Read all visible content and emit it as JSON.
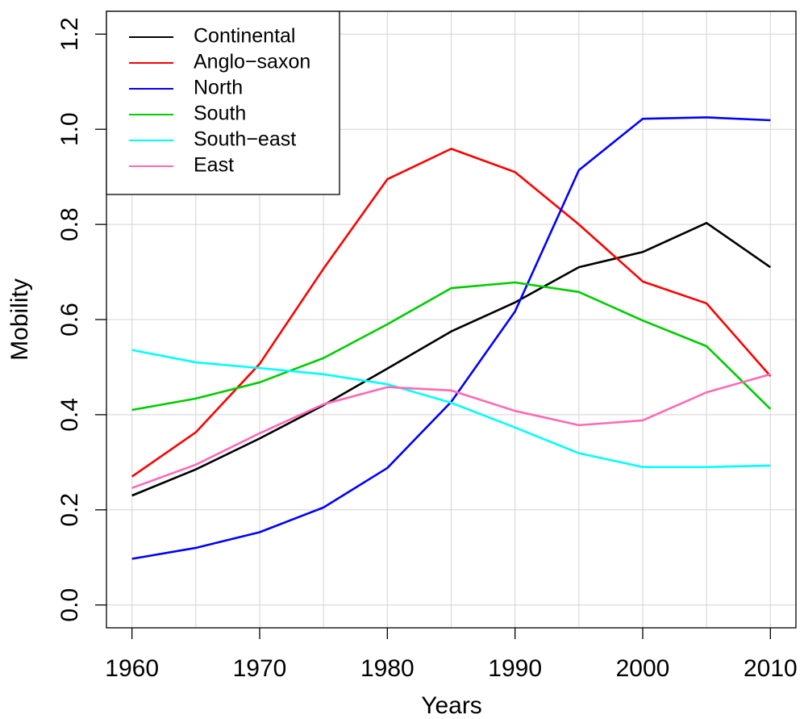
{
  "chart_data": {
    "type": "line",
    "x_label": "Years",
    "y_label": "Mobility",
    "x": [
      1960,
      1965,
      1970,
      1975,
      1980,
      1985,
      1990,
      1995,
      2000,
      2005,
      2010
    ],
    "series": [
      {
        "name": "Continental",
        "color": "#000000",
        "values": [
          0.23,
          0.285,
          0.35,
          0.42,
          0.497,
          0.575,
          0.636,
          0.71,
          0.742,
          0.803,
          0.71
        ]
      },
      {
        "name": "Anglo−saxon",
        "color": "#ff0000",
        "values": [
          0.27,
          0.363,
          0.507,
          0.707,
          0.895,
          0.959,
          0.91,
          0.8,
          0.68,
          0.634,
          0.481
        ]
      },
      {
        "name": "North",
        "color": "#0000ff",
        "values": [
          0.097,
          0.12,
          0.153,
          0.205,
          0.288,
          0.427,
          0.617,
          0.914,
          1.022,
          1.025,
          1.019
        ]
      },
      {
        "name": "South",
        "color": "#00cd00",
        "values": [
          0.41,
          0.434,
          0.468,
          0.519,
          0.59,
          0.666,
          0.678,
          0.658,
          0.598,
          0.544,
          0.412
        ]
      },
      {
        "name": "South−east",
        "color": "#00ffff",
        "values": [
          0.536,
          0.51,
          0.498,
          0.485,
          0.464,
          0.425,
          0.373,
          0.319,
          0.29,
          0.29,
          0.293
        ]
      },
      {
        "name": "East",
        "color": "#ff69b4",
        "values": [
          0.246,
          0.295,
          0.361,
          0.422,
          0.458,
          0.451,
          0.408,
          0.378,
          0.388,
          0.447,
          0.485
        ]
      }
    ],
    "xlim": [
      1958,
      2012
    ],
    "xticks": [
      1960,
      1970,
      1980,
      1990,
      2000,
      2010
    ],
    "ylim": [
      -0.048,
      1.248
    ],
    "yticks": [
      {
        "value": 0,
        "label": "0.0"
      },
      0.2,
      0.4,
      0.6,
      0.8,
      {
        "value": 1,
        "label": "1.0"
      },
      1.2
    ],
    "grid": true,
    "legend": "topleft"
  }
}
